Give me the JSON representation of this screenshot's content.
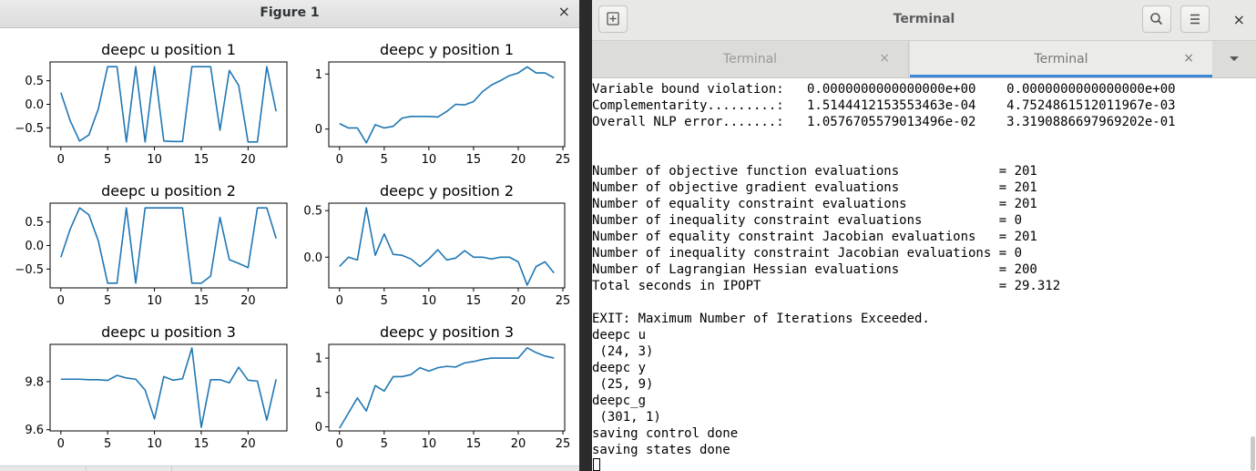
{
  "figure_window": {
    "title": "Figure 1",
    "close_glyph": "×"
  },
  "terminal_window": {
    "title": "Terminal",
    "new_tab_icon": "new-tab-icon",
    "search_icon": "search-icon",
    "menu_icon": "hamburger-menu-icon",
    "close_glyph": "×",
    "tabs": [
      {
        "label": "Terminal",
        "close_glyph": "×",
        "active": false
      },
      {
        "label": "Terminal",
        "close_glyph": "×",
        "active": true
      }
    ],
    "output": "Variable bound violation:   0.0000000000000000e+00    0.0000000000000000e+00\nComplementarity.........:   1.5144412153553463e-04    4.7524861512011967e-03\nOverall NLP error.......:   1.0576705579013496e-02    3.3190886697969202e-01\n\n\nNumber of objective function evaluations             = 201\nNumber of objective gradient evaluations             = 201\nNumber of equality constraint evaluations            = 201\nNumber of inequality constraint evaluations          = 0\nNumber of equality constraint Jacobian evaluations   = 201\nNumber of inequality constraint Jacobian evaluations = 0\nNumber of Lagrangian Hessian evaluations             = 200\nTotal seconds in IPOPT                               = 29.312\n\nEXIT: Maximum Number of Iterations Exceeded.\ndeepc u\n (24, 3)\ndeepc y\n (25, 9)\ndeepc_g\n (301, 1)\nsaving control done\nsaving states done",
    "accent_color": "#3c87d8"
  },
  "chart_data": [
    {
      "type": "line",
      "title": "deepc u position 1",
      "x": [
        0,
        1,
        2,
        3,
        4,
        5,
        6,
        7,
        8,
        9,
        10,
        11,
        12,
        13,
        14,
        15,
        16,
        17,
        18,
        19,
        20,
        21,
        22,
        23
      ],
      "series": [
        {
          "values": [
            0.25,
            -0.35,
            -0.78,
            -0.65,
            -0.1,
            0.8,
            0.8,
            -0.8,
            0.8,
            -0.8,
            0.8,
            -0.78,
            -0.79,
            -0.79,
            0.8,
            0.8,
            0.8,
            -0.55,
            0.72,
            0.4,
            -0.8,
            -0.8,
            0.8,
            -0.15
          ]
        }
      ],
      "xticks": [
        0,
        5,
        10,
        15,
        20
      ],
      "yticks": [
        0.5,
        0.0,
        -0.5
      ],
      "xlim": [
        -1.15,
        24.15
      ],
      "ylim": [
        -0.9,
        0.9
      ],
      "color": "#1f77b4"
    },
    {
      "type": "line",
      "title": "deepc y position 1",
      "x": [
        0,
        1,
        2,
        3,
        4,
        5,
        6,
        7,
        8,
        9,
        10,
        11,
        12,
        13,
        14,
        15,
        16,
        17,
        18,
        19,
        20,
        21,
        22,
        23,
        24
      ],
      "series": [
        {
          "values": [
            0.1,
            0.02,
            0.02,
            -0.25,
            0.08,
            0.02,
            0.05,
            0.2,
            0.23,
            0.23,
            0.23,
            0.22,
            0.32,
            0.45,
            0.44,
            0.5,
            0.68,
            0.8,
            0.88,
            0.97,
            1.02,
            1.13,
            1.02,
            1.02,
            0.93
          ]
        }
      ],
      "xticks": [
        0,
        5,
        10,
        15,
        20,
        25
      ],
      "yticks": [
        1,
        0
      ],
      "xlim": [
        -1.2,
        25.2
      ],
      "ylim": [
        -0.32,
        1.22
      ],
      "color": "#1f77b4"
    },
    {
      "type": "line",
      "title": "deepc u position 2",
      "x": [
        0,
        1,
        2,
        3,
        4,
        5,
        6,
        7,
        8,
        9,
        10,
        11,
        12,
        13,
        14,
        15,
        16,
        17,
        18,
        19,
        20,
        21,
        22,
        23
      ],
      "series": [
        {
          "values": [
            -0.25,
            0.35,
            0.8,
            0.65,
            0.1,
            -0.8,
            -0.8,
            0.8,
            -0.8,
            0.8,
            0.8,
            0.8,
            0.8,
            0.8,
            -0.8,
            -0.8,
            -0.65,
            0.6,
            -0.3,
            -0.38,
            -0.47,
            0.8,
            0.8,
            0.15
          ]
        }
      ],
      "xticks": [
        0,
        5,
        10,
        15,
        20
      ],
      "yticks": [
        0.5,
        0.0,
        -0.5
      ],
      "xlim": [
        -1.15,
        24.15
      ],
      "ylim": [
        -0.9,
        0.9
      ],
      "color": "#1f77b4"
    },
    {
      "type": "line",
      "title": "deepc y position 2",
      "x": [
        0,
        1,
        2,
        3,
        4,
        5,
        6,
        7,
        8,
        9,
        10,
        11,
        12,
        13,
        14,
        15,
        16,
        17,
        18,
        19,
        20,
        21,
        22,
        23,
        24
      ],
      "series": [
        {
          "values": [
            -0.1,
            0.0,
            -0.03,
            0.53,
            0.02,
            0.25,
            0.03,
            0.02,
            -0.02,
            -0.1,
            -0.02,
            0.08,
            -0.03,
            -0.01,
            0.07,
            0.0,
            0.0,
            -0.02,
            0.0,
            0.0,
            -0.05,
            -0.3,
            -0.1,
            -0.05,
            -0.17
          ]
        }
      ],
      "xticks": [
        0,
        5,
        10,
        15,
        20,
        25
      ],
      "yticks": [
        0.5,
        0.0
      ],
      "xlim": [
        -1.2,
        25.2
      ],
      "ylim": [
        -0.33,
        0.58
      ],
      "color": "#1f77b4"
    },
    {
      "type": "line",
      "title": "deepc u position 3",
      "x": [
        0,
        1,
        2,
        3,
        4,
        5,
        6,
        7,
        8,
        9,
        10,
        11,
        12,
        13,
        14,
        15,
        16,
        17,
        18,
        19,
        20,
        21,
        22,
        23
      ],
      "series": [
        {
          "values": [
            9.81,
            9.81,
            9.81,
            9.808,
            9.808,
            9.805,
            9.826,
            9.815,
            9.81,
            9.765,
            9.645,
            9.821,
            9.806,
            9.812,
            9.94,
            9.61,
            9.808,
            9.808,
            9.795,
            9.86,
            9.806,
            9.802,
            9.64,
            9.81
          ]
        }
      ],
      "xticks": [
        0,
        5,
        10,
        15,
        20
      ],
      "yticks": [
        9.8,
        9.6
      ],
      "xlim": [
        -1.15,
        24.15
      ],
      "ylim": [
        9.595,
        9.955
      ],
      "color": "#1f77b4"
    },
    {
      "type": "line",
      "title": "deepc y position 3",
      "x": [
        0,
        1,
        2,
        3,
        4,
        5,
        6,
        7,
        8,
        9,
        10,
        11,
        12,
        13,
        14,
        15,
        16,
        17,
        18,
        19,
        20,
        21,
        22,
        23,
        24
      ],
      "series": [
        {
          "values": [
            -0.02,
            0.2,
            0.42,
            0.23,
            0.6,
            0.52,
            0.73,
            0.73,
            0.76,
            0.86,
            0.81,
            0.86,
            0.88,
            0.87,
            0.93,
            0.95,
            0.98,
            1.0,
            1.0,
            1.0,
            1.0,
            1.15,
            1.08,
            1.03,
            1.0
          ]
        }
      ],
      "xticks": [
        0,
        5,
        10,
        15,
        20,
        25
      ],
      "yticks": [
        1.0,
        0.5,
        0.0
      ],
      "xlim": [
        -1.2,
        25.2
      ],
      "ylim": [
        -0.06,
        1.2
      ],
      "color": "#1f77b4"
    }
  ]
}
